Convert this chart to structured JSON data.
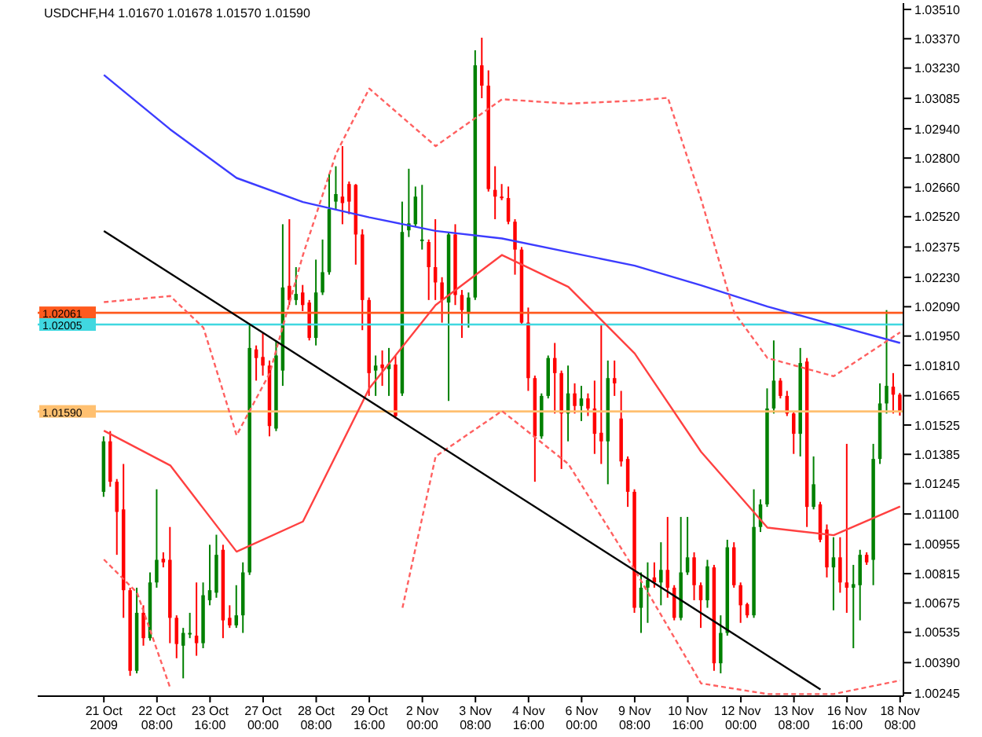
{
  "chart_data": {
    "type": "candlestick",
    "title": "USDCHF,H4 1.01670 1.01678 1.01570 1.01590",
    "categories": [
      "21 Oct 2009",
      null,
      null,
      null,
      null,
      null,
      null,
      null,
      "22 Oct 08:00",
      null,
      null,
      null,
      null,
      null,
      null,
      null,
      "23 Oct 16:00",
      null,
      null,
      null,
      null,
      null,
      null,
      null,
      "27 Oct 00:00",
      null,
      null,
      null,
      null,
      null,
      null,
      null,
      "28 Oct 08:00",
      null,
      null,
      null,
      null,
      null,
      null,
      null,
      "29 Oct 16:00",
      null,
      null,
      null,
      null,
      null,
      null,
      null,
      "2 Nov 00:00",
      null,
      null,
      null,
      null,
      null,
      null,
      null,
      "3 Nov 08:00",
      null,
      null,
      null,
      null,
      null,
      null,
      null,
      "4 Nov 16:00",
      null,
      null,
      null,
      null,
      null,
      null,
      null,
      "6 Nov 00:00",
      null,
      null,
      null,
      null,
      null,
      null,
      null,
      "9 Nov 08:00",
      null,
      null,
      null,
      null,
      null,
      null,
      null,
      "10 Nov 16:00",
      null,
      null,
      null,
      null,
      null,
      null,
      null,
      "12 Nov 00:00",
      null,
      null,
      null,
      null,
      null,
      null,
      null,
      "13 Nov 08:00",
      null,
      null,
      null,
      null,
      null,
      null,
      null,
      "16 Nov 16:00",
      null,
      null,
      null,
      null,
      null,
      null,
      null,
      "18 Nov 08:00"
    ],
    "ohlc": [
      [
        1.01206,
        1.01471,
        1.01182,
        1.01447
      ],
      [
        1.01447,
        1.01496,
        1.0123,
        1.01254
      ],
      [
        1.01254,
        1.01267,
        1.00905,
        1.0111
      ],
      [
        1.01122,
        1.01339,
        1.00604,
        1.00736
      ],
      [
        1.00736,
        1.00748,
        1.00327,
        1.00351
      ],
      [
        1.00351,
        1.00748,
        1.00339,
        1.00628
      ],
      [
        1.00628,
        1.00664,
        1.00471,
        1.00507
      ],
      [
        1.00507,
        1.00821,
        1.00495,
        1.00773
      ],
      [
        1.00773,
        1.01218,
        1.00748,
        1.00881
      ],
      [
        1.00886,
        1.00917,
        1.00845,
        1.00869
      ],
      [
        1.00881,
        1.01038,
        1.00483,
        1.00604
      ],
      [
        1.00604,
        1.00616,
        1.00411,
        1.00479
      ],
      [
        1.00471,
        1.00556,
        1.00315,
        1.00532
      ],
      [
        1.00527,
        1.00628,
        1.00507,
        1.00532
      ],
      [
        1.00519,
        1.00773,
        1.00423,
        1.00483
      ],
      [
        1.00483,
        1.00773,
        1.00459,
        1.00712
      ],
      [
        1.00688,
        1.00953,
        1.00664,
        1.00736
      ],
      [
        1.00724,
        1.01001,
        1.007,
        1.00905
      ],
      [
        1.00929,
        1.00953,
        1.00507,
        1.00592
      ],
      [
        1.00604,
        1.00664,
        1.00556,
        1.00568
      ],
      [
        1.00568,
        1.0076,
        1.00556,
        1.00616
      ],
      [
        1.00616,
        1.00869,
        1.00532,
        1.00821
      ],
      [
        1.00821,
        1.02002,
        1.00809,
        1.01893
      ],
      [
        1.01886,
        1.01905,
        1.01737,
        1.01845
      ],
      [
        1.0185,
        1.01965,
        1.01761,
        1.01809
      ],
      [
        1.01809,
        1.01833,
        1.01471,
        1.0152
      ],
      [
        1.01508,
        1.01929,
        1.01496,
        1.01857
      ],
      [
        1.01785,
        1.02484,
        1.01712,
        1.02182
      ],
      [
        1.0219,
        1.02508,
        1.02098,
        1.02122
      ],
      [
        1.02122,
        1.02279,
        1.02098,
        1.02151
      ],
      [
        1.02158,
        1.02194,
        1.02069,
        1.02098
      ],
      [
        1.0211,
        1.02122,
        1.01929,
        1.01941
      ],
      [
        1.01941,
        1.02315,
        1.01905,
        1.02158
      ],
      [
        1.02158,
        1.02411,
        1.02146,
        1.02255
      ],
      [
        1.02255,
        1.02725,
        1.02243,
        1.02556
      ],
      [
        1.02592,
        1.02761,
        1.02556,
        1.02628
      ],
      [
        1.02616,
        1.02857,
        1.02484,
        1.02585
      ],
      [
        1.02676,
        1.02688,
        1.02532,
        1.02592
      ],
      [
        1.02672,
        1.02676,
        1.02291,
        1.02435
      ],
      [
        1.02435,
        1.0246,
        1.01978,
        1.02122
      ],
      [
        1.02122,
        1.02134,
        1.01664,
        1.01773
      ],
      [
        1.01785,
        1.01857,
        1.01664,
        1.01809
      ],
      [
        1.01814,
        1.01881,
        1.01712,
        1.01797
      ],
      [
        1.01792,
        1.01893,
        1.01664,
        1.01816
      ],
      [
        1.01814,
        1.01857,
        1.01556,
        1.01568
      ],
      [
        1.01676,
        1.02592,
        1.01664,
        1.02447
      ],
      [
        1.02455,
        1.02749,
        1.02423,
        1.02488
      ],
      [
        1.02484,
        1.02664,
        1.02472,
        1.02616
      ],
      [
        1.02407,
        1.02672,
        1.02363,
        1.02411
      ],
      [
        1.02399,
        1.02411,
        1.02122,
        1.02279
      ],
      [
        1.02279,
        1.02508,
        1.02122,
        1.02206
      ],
      [
        1.02206,
        1.02231,
        1.02014,
        1.02122
      ],
      [
        1.0211,
        1.02447,
        1.0164,
        1.02435
      ],
      [
        1.02435,
        1.02484,
        1.02098,
        1.02146
      ],
      [
        1.02146,
        1.0217,
        1.01941,
        1.02074
      ],
      [
        1.02062,
        1.02158,
        1.0199,
        1.02134
      ],
      [
        1.02134,
        1.03315,
        1.02122,
        1.03243
      ],
      [
        1.03243,
        1.03375,
        1.03086,
        1.03146
      ],
      [
        1.03146,
        1.03219,
        1.0264,
        1.02652
      ],
      [
        1.02648,
        1.02761,
        1.02508,
        1.02616
      ],
      [
        1.02616,
        1.02676,
        1.02599,
        1.02609
      ],
      [
        1.02609,
        1.02664,
        1.02484,
        1.02496
      ],
      [
        1.02496,
        1.02508,
        1.02243,
        1.02363
      ],
      [
        1.02363,
        1.02375,
        1.02002,
        1.02014
      ],
      [
        1.02014,
        1.02086,
        1.01688,
        1.01749
      ],
      [
        1.01749,
        1.01761,
        1.01254,
        1.01471
      ],
      [
        1.01471,
        1.01676,
        1.01459,
        1.01664
      ],
      [
        1.01664,
        1.01857,
        1.01652,
        1.01845
      ],
      [
        1.01845,
        1.01917,
        1.0158,
        1.01773
      ],
      [
        1.01773,
        1.01785,
        1.01315,
        1.0158
      ],
      [
        1.0158,
        1.01809,
        1.01447,
        1.01676
      ],
      [
        1.01676,
        1.01724,
        1.0158,
        1.01616
      ],
      [
        1.01616,
        1.01712,
        1.01544,
        1.01652
      ],
      [
        1.01652,
        1.01676,
        1.01568,
        1.01604
      ],
      [
        1.01604,
        1.01737,
        1.01387,
        1.01483
      ],
      [
        1.01488,
        1.02002,
        1.01339,
        1.01447
      ],
      [
        1.01447,
        1.01833,
        1.01242,
        1.01749
      ],
      [
        1.01749,
        1.01833,
        1.01664,
        1.01724
      ],
      [
        1.01556,
        1.01688,
        1.01327,
        1.01351
      ],
      [
        1.01363,
        1.01375,
        1.01134,
        1.01206
      ],
      [
        1.01206,
        1.01218,
        1.00628,
        1.00652
      ],
      [
        1.00652,
        1.00821,
        1.00532,
        1.00748
      ],
      [
        1.00748,
        1.00869,
        1.0058,
        1.00785
      ],
      [
        1.00797,
        1.00869,
        1.00748,
        1.00773
      ],
      [
        1.00773,
        1.00965,
        1.00664,
        1.00833
      ],
      [
        1.00833,
        1.01086,
        1.007,
        1.00748
      ],
      [
        1.00748,
        1.0076,
        1.00592,
        1.00604
      ],
      [
        1.00604,
        1.01086,
        1.00592,
        1.00821
      ],
      [
        1.00821,
        1.01086,
        1.00809,
        1.00893
      ],
      [
        1.00893,
        1.00917,
        1.00688,
        1.0076
      ],
      [
        1.0076,
        1.00773,
        1.00556,
        1.00688
      ],
      [
        1.00688,
        1.00881,
        1.00652,
        1.0085
      ],
      [
        1.00845,
        1.00857,
        1.00351,
        1.00387
      ],
      [
        1.00387,
        1.00616,
        1.00339,
        1.00532
      ],
      [
        1.00532,
        1.00977,
        1.00519,
        1.00941
      ],
      [
        1.00941,
        1.00965,
        1.00748,
        1.0076
      ],
      [
        1.0076,
        1.00773,
        1.0058,
        1.00664
      ],
      [
        1.00669,
        1.00676,
        1.00604,
        1.00616
      ],
      [
        1.00616,
        1.01218,
        1.00604,
        1.01038
      ],
      [
        1.01038,
        1.0117,
        1.01014,
        1.01146
      ],
      [
        1.01146,
        1.017,
        1.01134,
        1.01604
      ],
      [
        1.01604,
        1.01929,
        1.0158,
        1.01737
      ],
      [
        1.01737,
        1.01749,
        1.01652,
        1.01664
      ],
      [
        1.01664,
        1.01688,
        1.01568,
        1.0158
      ],
      [
        1.0158,
        1.01592,
        1.01387,
        1.01483
      ],
      [
        1.01483,
        1.01893,
        1.01375,
        1.01821
      ],
      [
        1.01828,
        1.01845,
        1.01038,
        1.01134
      ],
      [
        1.01134,
        1.01375,
        1.01122,
        1.01242
      ],
      [
        1.01146,
        1.01158,
        1.00965,
        1.00977
      ],
      [
        1.01026,
        1.0105,
        1.00797,
        1.00845
      ],
      [
        1.00845,
        1.00989,
        1.0064,
        1.00893
      ],
      [
        1.00893,
        1.00989,
        1.00724,
        1.00773
      ],
      [
        1.00773,
        1.01435,
        1.00628,
        1.00748
      ],
      [
        1.00748,
        1.00857,
        1.00459,
        1.00765
      ],
      [
        1.0076,
        1.00929,
        1.00592,
        1.00905
      ],
      [
        1.00905,
        1.00917,
        1.00857,
        1.00869
      ],
      [
        1.00881,
        1.01435,
        1.0076,
        1.01363
      ],
      [
        1.01363,
        1.01724,
        1.01339,
        1.01628
      ],
      [
        1.01628,
        1.02074,
        1.0158,
        1.01712
      ],
      [
        1.01708,
        1.01773,
        1.0158,
        1.0167
      ],
      [
        1.0167,
        1.01678,
        1.0157,
        1.0159
      ]
    ],
    "colors": [
      "#008000",
      "#ff0000",
      "#ff0000",
      "#ff0000",
      "#ff0000",
      "#008000",
      "#ff0000",
      "#008000",
      "#008000",
      "#ff0000",
      "#ff0000",
      "#ff0000",
      "#008000",
      "#008000",
      "#ff0000",
      "#008000",
      "#008000",
      "#008000",
      "#ff0000",
      "#ff0000",
      "#008000",
      "#008000",
      "#008000",
      "#ff0000",
      "#ff0000",
      "#ff0000",
      "#008000",
      "#008000",
      "#ff0000",
      "#008000",
      "#ff0000",
      "#ff0000",
      "#008000",
      "#008000",
      "#008000",
      "#008000",
      "#ff0000",
      "#ff0000",
      "#ff0000",
      "#ff0000",
      "#ff0000",
      "#008000",
      "#ff0000",
      "#008000",
      "#ff0000",
      "#008000",
      "#008000",
      "#008000",
      "#008000",
      "#ff0000",
      "#ff0000",
      "#ff0000",
      "#008000",
      "#ff0000",
      "#ff0000",
      "#008000",
      "#008000",
      "#ff0000",
      "#ff0000",
      "#ff0000",
      "#ff0000",
      "#ff0000",
      "#ff0000",
      "#ff0000",
      "#ff0000",
      "#ff0000",
      "#008000",
      "#008000",
      "#ff0000",
      "#ff0000",
      "#008000",
      "#ff0000",
      "#008000",
      "#ff0000",
      "#ff0000",
      "#ff0000",
      "#008000",
      "#ff0000",
      "#ff0000",
      "#ff0000",
      "#ff0000",
      "#008000",
      "#008000",
      "#ff0000",
      "#008000",
      "#ff0000",
      "#ff0000",
      "#008000",
      "#008000",
      "#ff0000",
      "#ff0000",
      "#008000",
      "#ff0000",
      "#008000",
      "#008000",
      "#ff0000",
      "#ff0000",
      "#ff0000",
      "#008000",
      "#008000",
      "#008000",
      "#008000",
      "#ff0000",
      "#ff0000",
      "#ff0000",
      "#008000",
      "#ff0000",
      "#008000",
      "#ff0000",
      "#ff0000",
      "#008000",
      "#ff0000",
      "#ff0000",
      "#008000",
      "#008000",
      "#ff0000",
      "#008000",
      "#008000",
      "#008000",
      "#ff0000",
      "#ff0000"
    ],
    "series": [
      {
        "type": "line",
        "color": "#3c3cff",
        "values": [
          1.03197,
          null,
          null,
          null,
          null,
          null,
          null,
          null,
          null,
          null,
          1.02937,
          null,
          null,
          null,
          null,
          null,
          null,
          null,
          null,
          null,
          1.02705,
          null,
          null,
          null,
          null,
          null,
          null,
          null,
          null,
          null,
          1.0259,
          null,
          null,
          null,
          null,
          null,
          null,
          null,
          null,
          null,
          1.02517,
          null,
          null,
          null,
          null,
          null,
          null,
          null,
          null,
          null,
          1.02452,
          null,
          null,
          null,
          null,
          null,
          null,
          null,
          null,
          null,
          1.02416,
          null,
          null,
          null,
          null,
          null,
          null,
          null,
          null,
          null,
          1.02351,
          null,
          null,
          null,
          null,
          null,
          null,
          null,
          null,
          null,
          1.02286,
          null,
          null,
          null,
          null,
          null,
          null,
          null,
          null,
          null,
          1.02192,
          null,
          null,
          null,
          null,
          null,
          null,
          null,
          null,
          null,
          1.02091,
          null,
          null,
          null,
          null,
          null,
          null,
          null,
          null,
          null,
          1.02004,
          null,
          null,
          null,
          null,
          null,
          null,
          null,
          null,
          null,
          1.01917
        ]
      },
      {
        "type": "line",
        "color": "#ff4040",
        "values": [
          1.01498,
          null,
          null,
          null,
          null,
          null,
          null,
          null,
          null,
          null,
          1.01332,
          null,
          null,
          null,
          null,
          null,
          null,
          null,
          null,
          null,
          1.0092,
          null,
          null,
          null,
          null,
          null,
          null,
          null,
          null,
          null,
          1.01064,
          null,
          null,
          null,
          null,
          null,
          null,
          null,
          null,
          null,
          1.017,
          null,
          null,
          null,
          null,
          null,
          null,
          null,
          null,
          null,
          1.02098,
          null,
          null,
          null,
          null,
          null,
          null,
          null,
          null,
          null,
          1.02337,
          null,
          null,
          null,
          null,
          null,
          null,
          null,
          null,
          null,
          1.02185,
          null,
          null,
          null,
          null,
          null,
          null,
          null,
          null,
          null,
          1.01867,
          null,
          null,
          null,
          null,
          null,
          null,
          null,
          null,
          null,
          1.01397,
          null,
          null,
          null,
          null,
          null,
          null,
          null,
          null,
          null,
          1.01035,
          null,
          null,
          null,
          null,
          null,
          null,
          null,
          null,
          null,
          1.00999,
          null,
          null,
          null,
          null,
          null,
          null,
          null,
          null,
          null,
          1.01136
        ]
      },
      {
        "type": "line",
        "color": "#ff6060",
        "line_style": "dashed",
        "values": [
          1.02112,
          null,
          null,
          null,
          null,
          null,
          null,
          null,
          null,
          null,
          1.02141,
          null,
          null,
          null,
          null,
          1.0199,
          null,
          null,
          null,
          null,
          1.01476,
          null,
          null,
          null,
          null,
          1.01773,
          null,
          null,
          null,
          null,
          1.02337,
          null,
          null,
          null,
          null,
          1.02821,
          null,
          null,
          null,
          null,
          1.03132,
          null,
          null,
          null,
          null,
          null,
          null,
          null,
          null,
          null,
          1.02857,
          null,
          null,
          null,
          null,
          null,
          null,
          null,
          null,
          null,
          1.03081,
          null,
          null,
          null,
          null,
          null,
          null,
          null,
          null,
          null,
          1.0306,
          null,
          null,
          null,
          null,
          null,
          null,
          null,
          null,
          null,
          1.03074,
          null,
          null,
          null,
          null,
          1.03088,
          null,
          null,
          null,
          null,
          1.02604,
          null,
          null,
          null,
          null,
          1.02062,
          null,
          null,
          null,
          null,
          1.01845,
          null,
          null,
          null,
          null,
          null,
          null,
          null,
          null,
          null,
          1.01758,
          null,
          null,
          null,
          null,
          null,
          null,
          null,
          null,
          null,
          1.01968
        ]
      },
      {
        "type": "line",
        "color": "#ff6060",
        "line_style": "dashed",
        "values": [
          1.00883,
          null,
          null,
          null,
          null,
          1.00724,
          null,
          null,
          null,
          null,
          1.00269,
          null,
          null,
          null,
          null,
          null,
          null,
          null,
          null,
          null,
          null,
          null,
          null,
          null,
          null,
          null,
          null,
          null,
          null,
          null,
          null,
          null,
          null,
          null,
          null,
          null,
          null,
          null,
          null,
          null,
          null,
          null,
          null,
          null,
          null,
          null,
          null,
          null,
          null,
          null,
          null,
          null,
          null,
          null,
          null,
          null,
          null,
          null,
          null,
          null,
          null,
          null,
          null,
          null,
          null,
          null,
          null,
          null,
          null,
          null,
          null,
          null,
          null,
          null,
          null,
          null,
          null,
          null,
          null,
          null,
          null,
          null,
          null,
          null,
          null,
          null,
          null,
          null,
          null,
          null,
          null,
          null,
          null,
          null,
          null,
          null,
          null,
          null,
          null,
          null,
          null,
          null,
          null,
          null,
          null,
          null,
          null,
          null,
          null,
          null,
          null,
          null,
          null,
          null,
          null,
          null,
          null,
          null,
          null,
          null,
          null
        ]
      },
      {
        "type": "line",
        "color": "#ff6060",
        "line_style": "dashed",
        "values": [
          null,
          null,
          null,
          null,
          null,
          null,
          null,
          null,
          null,
          null,
          null,
          null,
          null,
          null,
          null,
          null,
          null,
          null,
          null,
          null,
          null,
          null,
          null,
          null,
          null,
          null,
          null,
          null,
          null,
          null,
          null,
          null,
          null,
          null,
          null,
          null,
          null,
          null,
          null,
          null,
          null,
          null,
          null,
          null,
          null,
          1.00652,
          null,
          null,
          null,
          null,
          1.01375,
          null,
          null,
          null,
          null,
          null,
          null,
          null,
          null,
          null,
          1.01592,
          null,
          null,
          null,
          null,
          null,
          null,
          null,
          null,
          null,
          1.01339,
          null,
          null,
          null,
          null,
          null,
          null,
          null,
          null,
          null,
          1.00833,
          null,
          null,
          null,
          null,
          null,
          null,
          null,
          null,
          null,
          1.00291,
          null,
          null,
          null,
          null,
          null,
          null,
          null,
          null,
          null,
          1.0024,
          null,
          null,
          null,
          null,
          null,
          null,
          null,
          null,
          null,
          1.0024,
          null,
          null,
          null,
          null,
          null,
          null,
          null,
          null,
          null,
          1.00305
        ]
      },
      {
        "type": "line",
        "color": "#000000",
        "values": [
          1.02452,
          null,
          null,
          null,
          null,
          null,
          null,
          null,
          null,
          null,
          null,
          null,
          null,
          null,
          null,
          null,
          null,
          null,
          null,
          null,
          null,
          null,
          null,
          null,
          null,
          null,
          null,
          null,
          null,
          null,
          null,
          null,
          null,
          null,
          null,
          null,
          null,
          null,
          null,
          null,
          null,
          null,
          null,
          null,
          null,
          null,
          null,
          null,
          null,
          null,
          null,
          null,
          null,
          null,
          null,
          null,
          null,
          null,
          null,
          null,
          null,
          null,
          null,
          null,
          null,
          null,
          null,
          null,
          null,
          null,
          null,
          null,
          null,
          null,
          null,
          null,
          null,
          null,
          null,
          null,
          null,
          null,
          null,
          null,
          null,
          null,
          null,
          null,
          null,
          null,
          null,
          null,
          null,
          null,
          null,
          null,
          null,
          null,
          null,
          null,
          null,
          null,
          null,
          null,
          null,
          null,
          null,
          null,
          1.00262,
          null,
          null,
          null,
          null,
          null,
          null,
          null,
          null,
          null,
          null,
          null,
          null
        ]
      }
    ],
    "ylim": [
      1.0023,
      1.0354
    ],
    "yticks": [
      {
        "value": 1.0351,
        "label": "1.03510"
      },
      {
        "value": 1.0337,
        "label": "1.03370"
      },
      {
        "value": 1.0323,
        "label": "1.03230"
      },
      {
        "value": 1.03085,
        "label": "1.03085"
      },
      {
        "value": 1.0294,
        "label": "1.02940"
      },
      {
        "value": 1.028,
        "label": "1.02800"
      },
      {
        "value": 1.0266,
        "label": "1.02660"
      },
      {
        "value": 1.0252,
        "label": "1.02520"
      },
      {
        "value": 1.02375,
        "label": "1.02375"
      },
      {
        "value": 1.0223,
        "label": "1.02230"
      },
      {
        "value": 1.0209,
        "label": "1.02090"
      },
      {
        "value": 1.0195,
        "label": "1.01950"
      },
      {
        "value": 1.0181,
        "label": "1.01810"
      },
      {
        "value": 1.01665,
        "label": "1.01665"
      },
      {
        "value": 1.01525,
        "label": "1.01525"
      },
      {
        "value": 1.01385,
        "label": "1.01385"
      },
      {
        "value": 1.01245,
        "label": "1.01245"
      },
      {
        "value": 1.011,
        "label": "1.01100"
      },
      {
        "value": 1.00955,
        "label": "1.00955"
      },
      {
        "value": 1.00815,
        "label": "1.00815"
      },
      {
        "value": 1.00675,
        "label": "1.00675"
      },
      {
        "value": 1.00535,
        "label": "1.00535"
      },
      {
        "value": 1.0039,
        "label": "1.00390"
      },
      {
        "value": 1.00245,
        "label": "1.00245"
      }
    ],
    "ref_lines": [
      {
        "axis": "y",
        "value": 1.02061,
        "label": "1.02061",
        "color": "#ff5a1e"
      },
      {
        "axis": "y",
        "value": 1.02005,
        "label": "1.02005",
        "color": "#40d8e0"
      },
      {
        "axis": "y",
        "value": 1.0159,
        "label": "1.01590",
        "color": "#ffc070"
      }
    ]
  }
}
